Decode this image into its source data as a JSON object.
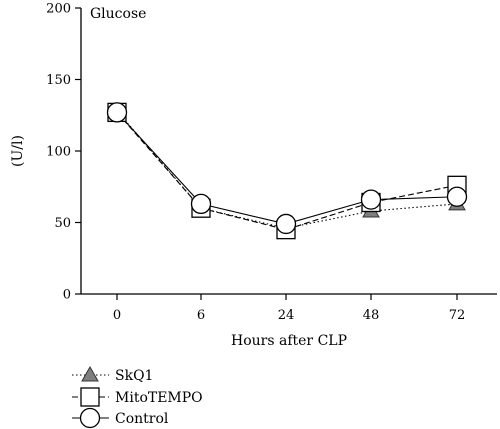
{
  "chart_data": {
    "type": "line",
    "title": "Glucose",
    "xlabel": "Hours after CLP",
    "ylabel": "(U/l)",
    "categories": [
      "0",
      "6",
      "24",
      "48",
      "72"
    ],
    "ylim": [
      0,
      200
    ],
    "yticks": [
      0,
      50,
      100,
      150,
      200
    ],
    "grid": false,
    "legend_position": "bottom-left",
    "series": [
      {
        "name": "SkQ1",
        "marker": "triangle",
        "line": "dotted",
        "values": [
          128,
          60,
          46,
          58,
          63
        ]
      },
      {
        "name": "MitoTEMPO",
        "marker": "square",
        "line": "dashed",
        "values": [
          127,
          60,
          45,
          64,
          76
        ]
      },
      {
        "name": "Control",
        "marker": "circle",
        "line": "solid",
        "values": [
          127,
          63,
          49,
          66,
          68
        ]
      }
    ]
  }
}
